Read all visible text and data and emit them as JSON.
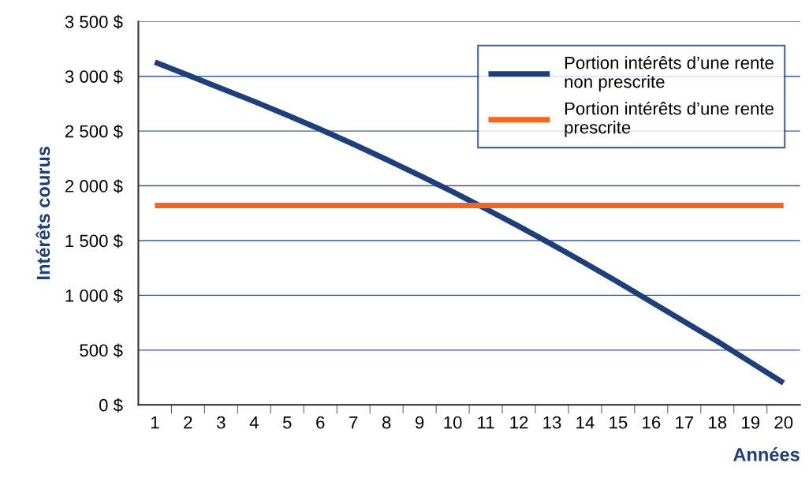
{
  "chart_data": {
    "type": "line",
    "xlabel": "Années",
    "ylabel": "Intérêts courus",
    "categories": [
      "1",
      "2",
      "3",
      "4",
      "5",
      "6",
      "7",
      "8",
      "9",
      "10",
      "11",
      "12",
      "13",
      "14",
      "15",
      "16",
      "17",
      "18",
      "19",
      "20"
    ],
    "series": [
      {
        "name": "Portion intérêts d’une rente\nnon prescrite",
        "color": "#1f3f7a",
        "values": [
          3130,
          3010,
          2890,
          2770,
          2645,
          2515,
          2380,
          2240,
          2095,
          1945,
          1790,
          1630,
          1465,
          1295,
          1120,
          940,
          760,
          580,
          390,
          200
        ]
      },
      {
        "name": "Portion intérêts d’une rente\nprescrite",
        "color": "#f26522",
        "values": [
          1820,
          1820,
          1820,
          1820,
          1820,
          1820,
          1820,
          1820,
          1820,
          1820,
          1820,
          1820,
          1820,
          1820,
          1820,
          1820,
          1820,
          1820,
          1820,
          1820
        ]
      }
    ],
    "ylim": [
      0,
      3500
    ],
    "yticks": [
      {
        "value": 0,
        "label": "0 $"
      },
      {
        "value": 500,
        "label": "500 $"
      },
      {
        "value": 1000,
        "label": "1 000 $"
      },
      {
        "value": 1500,
        "label": "1 500 $"
      },
      {
        "value": 2000,
        "label": "2 000 $"
      },
      {
        "value": 2500,
        "label": "2 500 $"
      },
      {
        "value": 3000,
        "label": "3 000 $"
      },
      {
        "value": 3500,
        "label": "3 500 $"
      }
    ],
    "grid": "y",
    "legend": "top right",
    "marker": "none",
    "line_style": "solid"
  }
}
